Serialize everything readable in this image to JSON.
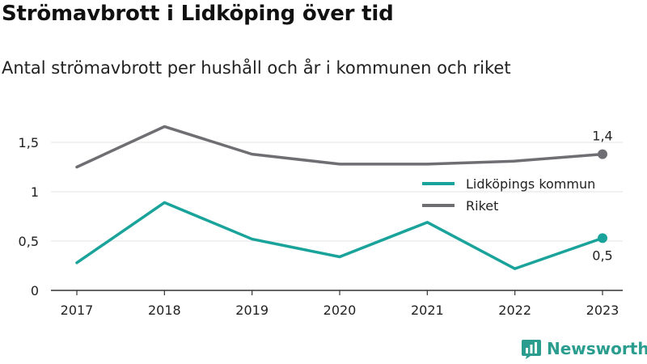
{
  "title": "Strömavbrott i Lidköping över tid",
  "subtitle": "Antal strömavbrott per hushåll och år i kommunen och riket",
  "brand": "Newsworthy",
  "colors": {
    "kommun": "#1aa39a",
    "riket": "#6e6e73",
    "brand": "#2a9d8f"
  },
  "chart_data": {
    "type": "line",
    "categories": [
      "2017",
      "2018",
      "2019",
      "2020",
      "2021",
      "2022",
      "2023"
    ],
    "series": [
      {
        "name": "Lidköpings kommun",
        "values": [
          0.28,
          0.89,
          0.52,
          0.34,
          0.69,
          0.22,
          0.53
        ],
        "end_label": "0,5"
      },
      {
        "name": "Riket",
        "values": [
          1.25,
          1.66,
          1.38,
          1.28,
          1.28,
          1.31,
          1.38
        ],
        "end_label": "1,4"
      }
    ],
    "y_ticks": [
      {
        "value": 0,
        "label": "0"
      },
      {
        "value": 0.5,
        "label": "0,5"
      },
      {
        "value": 1,
        "label": "1"
      },
      {
        "value": 1.5,
        "label": "1,5"
      }
    ],
    "ylim": [
      0,
      1.75
    ],
    "grid": true,
    "legend": "right"
  }
}
